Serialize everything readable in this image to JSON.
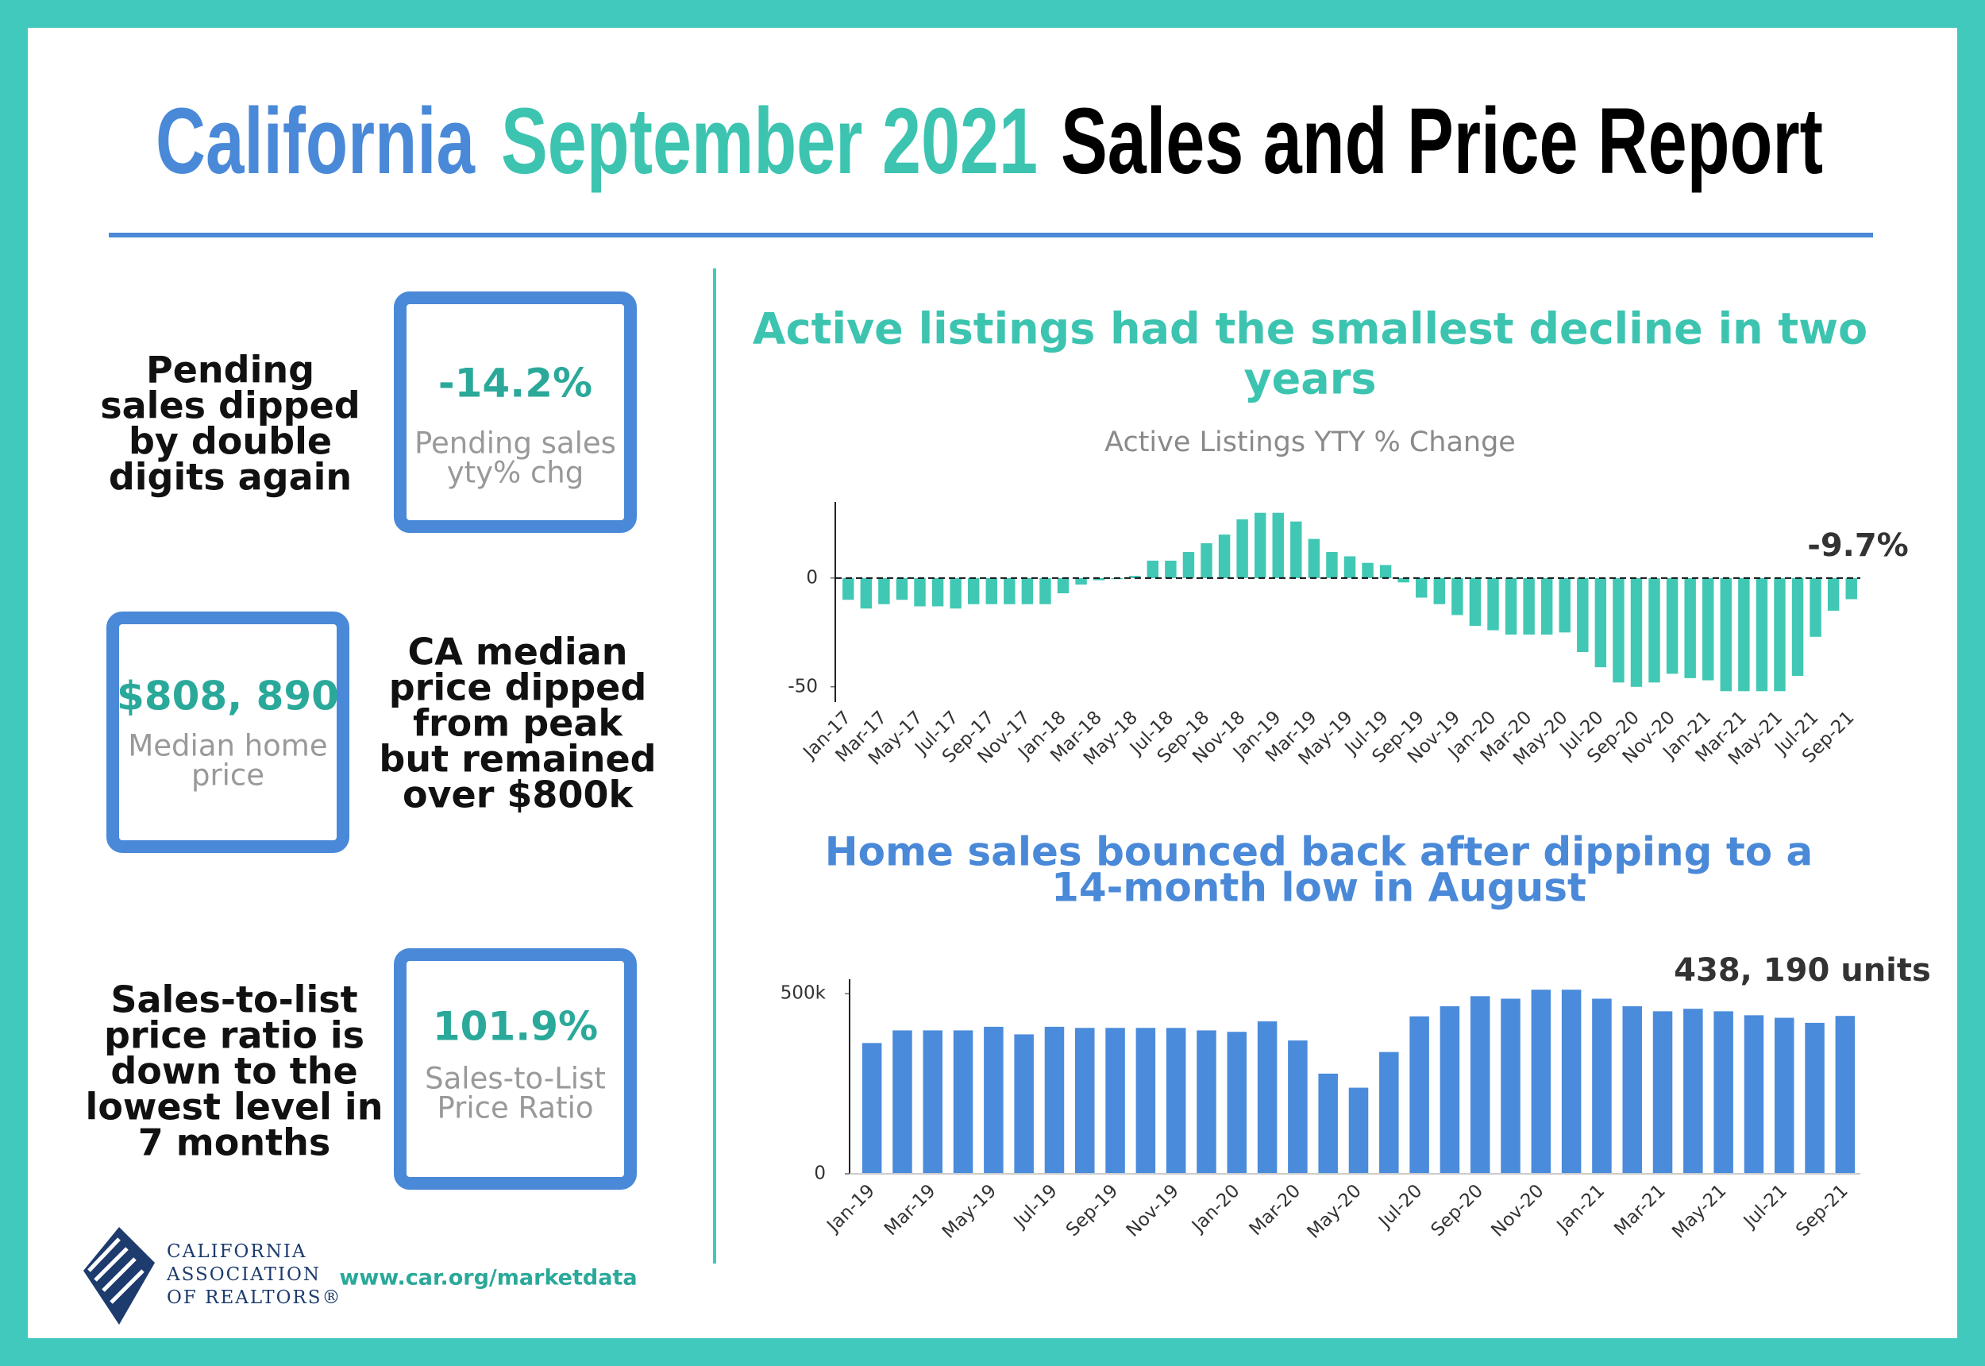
{
  "title": {
    "place": "California",
    "period": "September 2021",
    "subject": "Sales and Price Report"
  },
  "stats": [
    {
      "headline": [
        "Pending",
        "sales dipped",
        "by double",
        "digits again"
      ],
      "value": "-14.2%",
      "label": [
        "Pending sales",
        "yty% chg"
      ]
    },
    {
      "headline": [
        "CA median",
        "price dipped",
        "from peak",
        "but remained",
        "over $800k"
      ],
      "value": "$808, 890",
      "label": [
        "Median home",
        "price"
      ]
    },
    {
      "headline": [
        "Sales-to-list",
        "price ratio is",
        "down to the",
        "lowest level in",
        "7 months"
      ],
      "value": "101.9%",
      "label": [
        "Sales-to-List",
        "Price Ratio"
      ]
    }
  ],
  "footer": {
    "organization": [
      "CALIFORNIA",
      "ASSOCIATION",
      "OF REALTORS®"
    ],
    "url": "www.car.org/marketdata"
  },
  "chart_data": [
    {
      "type": "bar",
      "title": [
        "Active listings had the smallest decline in two",
        "years"
      ],
      "subtitle": "Active Listings YTY % Change",
      "annotation": "-9.7%",
      "color": "#41c8b4",
      "categories": [
        "Jan-17",
        null,
        "Mar-17",
        null,
        "May-17",
        null,
        "Jul-17",
        null,
        "Sep-17",
        null,
        "Nov-17",
        null,
        "Jan-18",
        null,
        "Mar-18",
        null,
        "May-18",
        null,
        "Jul-18",
        null,
        "Sep-18",
        null,
        "Nov-18",
        null,
        "Jan-19",
        null,
        "Mar-19",
        null,
        "May-19",
        null,
        "Jul-19",
        null,
        "Sep-19",
        null,
        "Nov-19",
        null,
        "Jan-20",
        null,
        "Mar-20",
        null,
        "May-20",
        null,
        "Jul-20",
        null,
        "Sep-20",
        null,
        "Nov-20",
        null,
        "Jan-21",
        null,
        "Mar-21",
        null,
        "May-21",
        null,
        "Jul-21",
        null,
        "Sep-21"
      ],
      "values": [
        -10,
        -14,
        -12,
        -10,
        -13,
        -13,
        -14,
        -12,
        -12,
        -12,
        -12,
        -12,
        -7,
        -3,
        -1,
        -0.5,
        1,
        8,
        8,
        12,
        16,
        20,
        27,
        30,
        30,
        26,
        18,
        12,
        10,
        7,
        6,
        -2,
        -9,
        -12,
        -17,
        -22,
        -24,
        -26,
        -26,
        -26,
        -25,
        -34,
        -41,
        -48,
        -50,
        -48,
        -44,
        -46,
        -47,
        -52,
        -52,
        -52,
        -52,
        -45,
        -27,
        -15,
        -9.7
      ],
      "ylim": [
        -57,
        35
      ],
      "yticks": [
        0,
        -50
      ],
      "zero_line": "dashed"
    },
    {
      "type": "bar",
      "title": [
        "Home sales bounced back after dipping to a",
        "14-month low in August"
      ],
      "annotation": "438, 190 units",
      "color": "#4b8bdb",
      "categories": [
        "Jan-19",
        null,
        "Mar-19",
        null,
        "May-19",
        null,
        "Jul-19",
        null,
        "Sep-19",
        null,
        "Nov-19",
        null,
        "Jan-20",
        null,
        "Mar-20",
        null,
        "May-20",
        null,
        "Jul-20",
        null,
        "Sep-20",
        null,
        "Nov-20",
        null,
        "Jan-21",
        null,
        "Mar-21",
        null,
        "May-21",
        null,
        "Jul-21",
        null,
        "Sep-21"
      ],
      "values": [
        363000,
        398000,
        398000,
        398000,
        408000,
        387000,
        408000,
        405000,
        405000,
        405000,
        405000,
        398000,
        394000,
        423000,
        370000,
        278000,
        239000,
        338000,
        437000,
        465000,
        493000,
        486000,
        511000,
        511000,
        486000,
        465000,
        451000,
        458000,
        451000,
        440000,
        433000,
        419000,
        438190
      ],
      "ylim": [
        0,
        540000
      ],
      "yticks": [
        0,
        {
          "value": 500000,
          "label": "500k"
        }
      ]
    }
  ]
}
